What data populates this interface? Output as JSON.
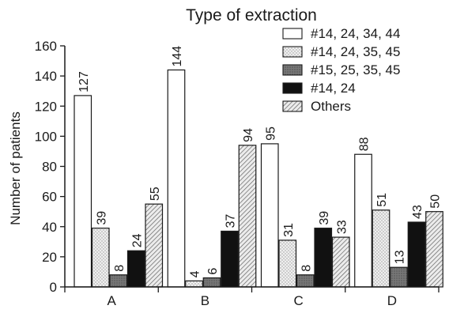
{
  "chart_data": {
    "type": "bar",
    "title": "Type of extraction",
    "xlabel": "",
    "ylabel": "Number of patients",
    "ylim": [
      0,
      160
    ],
    "yticks": [
      "0",
      "20",
      "40",
      "60",
      "80",
      "100",
      "120",
      "140",
      "160"
    ],
    "categories": [
      "A",
      "B",
      "C",
      "D"
    ],
    "legend_position": "top-right",
    "series": [
      {
        "name": "#14, 24, 34, 44",
        "values": [
          127,
          144,
          95,
          88
        ],
        "labels": [
          "127",
          "144",
          "95",
          "88"
        ],
        "fill": "#ffffff",
        "pattern": "none"
      },
      {
        "name": "#14, 24, 35, 45",
        "values": [
          39,
          4,
          31,
          51
        ],
        "labels": [
          "39",
          "4",
          "31",
          "51"
        ],
        "fill": "#e4e4e4",
        "pattern": "dots"
      },
      {
        "name": "#15, 25, 35, 45",
        "values": [
          8,
          6,
          8,
          13
        ],
        "labels": [
          "8",
          "6",
          "8",
          "13"
        ],
        "fill": "#6a6a6a",
        "pattern": "dots"
      },
      {
        "name": "#14, 24",
        "values": [
          24,
          37,
          39,
          43
        ],
        "labels": [
          "24",
          "37",
          "39",
          "43"
        ],
        "fill": "#111111",
        "pattern": "none"
      },
      {
        "name": "Others",
        "values": [
          55,
          94,
          33,
          50
        ],
        "labels": [
          "55",
          "94",
          "33",
          "50"
        ],
        "fill": "#d9d9d9",
        "pattern": "hatch"
      }
    ]
  }
}
